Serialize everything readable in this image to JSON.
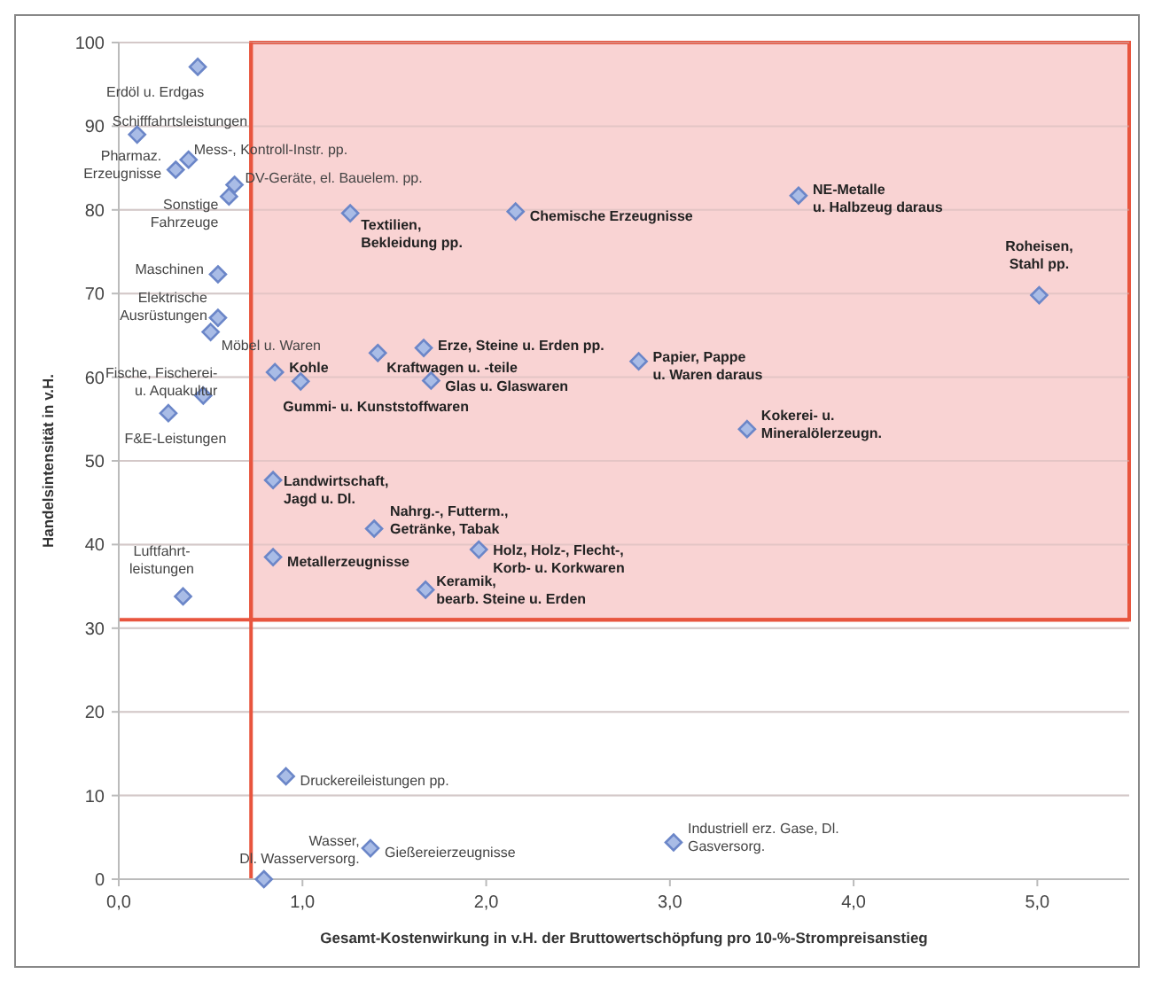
{
  "chart_data": {
    "type": "scatter",
    "xlabel": "Gesamt-Kostenwirkung in v.H. der Bruttowertschöpfung pro 10-%-Strompreisanstieg",
    "ylabel": "Handelsintensität in v.H.",
    "xlim": [
      0,
      5.5
    ],
    "xticks": [
      {
        "value": 0,
        "label": "0,0"
      },
      {
        "value": 1,
        "label": "1,0"
      },
      {
        "value": 2,
        "label": "2,0"
      },
      {
        "value": 3,
        "label": "3,0"
      },
      {
        "value": 4,
        "label": "4,0"
      },
      {
        "value": 5,
        "label": "5,0"
      }
    ],
    "ylim": [
      0,
      100
    ],
    "yticks": [
      0,
      10,
      20,
      30,
      40,
      50,
      60,
      70,
      80,
      90,
      100
    ],
    "grid": "y",
    "marker": "diamond",
    "series": [
      {
        "color": "#6b86c8",
        "x": [
          0.43,
          0.1,
          0.31,
          0.38,
          0.63,
          0.6,
          0.54,
          0.54,
          0.5,
          0.46,
          0.27,
          0.85,
          0.99,
          0.35,
          0.84,
          1.39,
          0.84,
          1.96,
          1.67,
          1.26,
          2.16,
          1.41,
          1.66,
          1.7,
          2.83,
          3.42,
          3.7,
          5.01,
          0.91,
          0.79,
          1.37,
          3.02
        ],
        "values": [
          97.1,
          89,
          84.8,
          86,
          83,
          81.6,
          72.3,
          67.1,
          65.4,
          57.8,
          55.7,
          60.6,
          59.5,
          33.8,
          47.7,
          41.9,
          38.5,
          39.4,
          34.6,
          79.6,
          79.8,
          62.9,
          63.5,
          59.6,
          61.9,
          53.8,
          81.7,
          69.8,
          12.3,
          0,
          3.7,
          4.4
        ]
      }
    ],
    "ref_lines": [
      {
        "axis": "x",
        "value": 0.72,
        "color": "#e8553e"
      },
      {
        "axis": "y",
        "value": 31,
        "color": "#e8553e"
      }
    ],
    "bands": [
      {
        "axis": "y",
        "from": 31,
        "to": 100,
        "color": "#f9d3d3"
      }
    ],
    "annotations": [
      {
        "text": "Erdöl u. Erdgas",
        "x": 0.43,
        "y": 97.1
      },
      {
        "text": "Schifffahrtsleistungen",
        "x": 0.1,
        "y": 89
      },
      {
        "text": "Pharmaz.\nErzeugnisse",
        "x": 0.31,
        "y": 84.8
      },
      {
        "text": "Mess-, Kontroll-Instr. pp.",
        "x": 0.38,
        "y": 86
      },
      {
        "text": "DV-Geräte, el. Bauelem. pp.",
        "x": 0.63,
        "y": 83
      },
      {
        "text": "Sonstige\nFahrzeuge",
        "x": 0.6,
        "y": 81.6
      },
      {
        "text": "Maschinen",
        "x": 0.54,
        "y": 72.3
      },
      {
        "text": "Elektrische\nAusrüstungen",
        "x": 0.54,
        "y": 67.1
      },
      {
        "text": "Möbel u. Waren",
        "x": 0.5,
        "y": 65.4
      },
      {
        "text": "Fische, Fischerei-\nu. Aquakultur",
        "x": 0.46,
        "y": 57.8
      },
      {
        "text": "F&E-Leistungen",
        "x": 0.27,
        "y": 55.7
      },
      {
        "text": "Kohle",
        "x": 0.85,
        "y": 60.6
      },
      {
        "text": "Gummi- u. Kunststoffwaren",
        "x": 0.99,
        "y": 59.5
      },
      {
        "text": "Luftfahrt-\nleistungen",
        "x": 0.35,
        "y": 33.8
      },
      {
        "text": "Landwirtschaft,\nJagd u. Dl.",
        "x": 0.84,
        "y": 47.7
      },
      {
        "text": "Nahrg.-, Futterm.,\nGetränke, Tabak",
        "x": 1.39,
        "y": 41.9
      },
      {
        "text": "Metallerzeugnisse",
        "x": 0.84,
        "y": 38.5
      },
      {
        "text": "Holz, Holz-, Flecht-,\nKorb- u. Korkwaren",
        "x": 1.96,
        "y": 39.4
      },
      {
        "text": "Keramik,\nbearb. Steine u. Erden",
        "x": 1.67,
        "y": 34.6
      },
      {
        "text": "Textilien,\nBekleidung pp.",
        "x": 1.26,
        "y": 79.6
      },
      {
        "text": "Chemische Erzeugnisse",
        "x": 2.16,
        "y": 79.8
      },
      {
        "text": "Kraftwagen u. -teile",
        "x": 1.41,
        "y": 62.9
      },
      {
        "text": "Erze, Steine u. Erden pp.",
        "x": 1.66,
        "y": 63.5
      },
      {
        "text": "Glas u. Glaswaren",
        "x": 1.7,
        "y": 59.6
      },
      {
        "text": "Papier, Pappe\nu. Waren daraus",
        "x": 2.83,
        "y": 61.9
      },
      {
        "text": "Kokerei- u.\nMineralölerzeugn.",
        "x": 3.42,
        "y": 53.8
      },
      {
        "text": "NE-Metalle\nu. Halbzeug daraus",
        "x": 3.7,
        "y": 81.7
      },
      {
        "text": "Roheisen,\nStahl pp.",
        "x": 5.01,
        "y": 69.8
      },
      {
        "text": "Druckereileistungen pp.",
        "x": 0.91,
        "y": 12.3
      },
      {
        "text": "Wasser,\nDl. Wasserversorg.",
        "x": 0.79,
        "y": 0
      },
      {
        "text": "Gießereierzeugnisse",
        "x": 1.37,
        "y": 3.7
      },
      {
        "text": "Industriell erz. Gase, Dl.\nGasversorg.",
        "x": 3.02,
        "y": 4.4
      }
    ]
  }
}
